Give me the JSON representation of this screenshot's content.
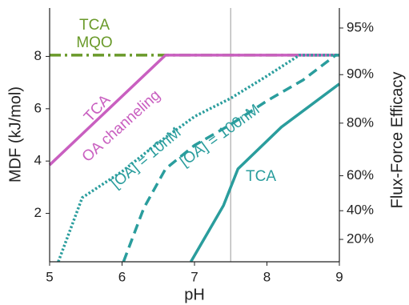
{
  "chart_data": {
    "type": "line",
    "xlabel": "pH",
    "ylabel": "MDF (kJ/mol)",
    "y2label": "Flux-Force Efficacy",
    "xlim": [
      5,
      9
    ],
    "xticks": [
      5,
      6,
      7,
      8,
      9
    ],
    "ylim": [
      0.15,
      9.85
    ],
    "yticks": [
      2,
      4,
      6,
      8
    ],
    "y2ticks": [
      {
        "value": 20,
        "label": "20%"
      },
      {
        "value": 40,
        "label": "40%"
      },
      {
        "value": 60,
        "label": "60%"
      },
      {
        "value": 80,
        "label": "80%"
      },
      {
        "value": 90,
        "label": "90%"
      },
      {
        "value": 95,
        "label": "95%"
      }
    ],
    "vline": 7.5,
    "series": [
      {
        "color": "#6a9a2a",
        "style": "dashdot",
        "x": [
          5,
          9
        ],
        "values": [
          8.05,
          8.05
        ]
      },
      {
        "color": "#c95fc0",
        "style": "solid",
        "x": [
          5,
          6.6,
          9
        ],
        "values": [
          3.85,
          8.05,
          8.05
        ]
      },
      {
        "color": "#2a9d9d",
        "style": "dotted",
        "x": [
          5.12,
          5.45,
          6,
          6.5,
          7,
          7.5,
          8,
          8.45,
          9
        ],
        "values": [
          0.15,
          2.6,
          3.6,
          4.7,
          5.7,
          6.4,
          7.25,
          8.05,
          8.05
        ]
      },
      {
        "color": "#2a9d9d",
        "style": "dashed",
        "x": [
          6.02,
          6.3,
          6.6,
          7,
          7.5,
          8,
          8.5,
          8.95,
          9
        ],
        "values": [
          0.15,
          2.2,
          3.7,
          4.6,
          5.4,
          6.3,
          7.1,
          8.05,
          8.05
        ]
      },
      {
        "color": "#2a9d9d",
        "style": "solid",
        "x": [
          6.95,
          7.4,
          7.6,
          8.2,
          9
        ],
        "values": [
          0.15,
          2.3,
          3.7,
          5.3,
          6.95
        ]
      }
    ],
    "annotations": [
      {
        "text": "TCA",
        "color": "#6a9a2a"
      },
      {
        "text": "MQO",
        "color": "#6a9a2a"
      },
      {
        "text": "TCA",
        "color": "#c95fc0"
      },
      {
        "text": "OA channeling",
        "color": "#c95fc0"
      },
      {
        "text": "[OA] = 10nM",
        "color": "#2a9d9d"
      },
      {
        "text": "[OA] = 100nM",
        "color": "#2a9d9d"
      },
      {
        "text": "TCA",
        "color": "#2a9d9d"
      }
    ]
  }
}
